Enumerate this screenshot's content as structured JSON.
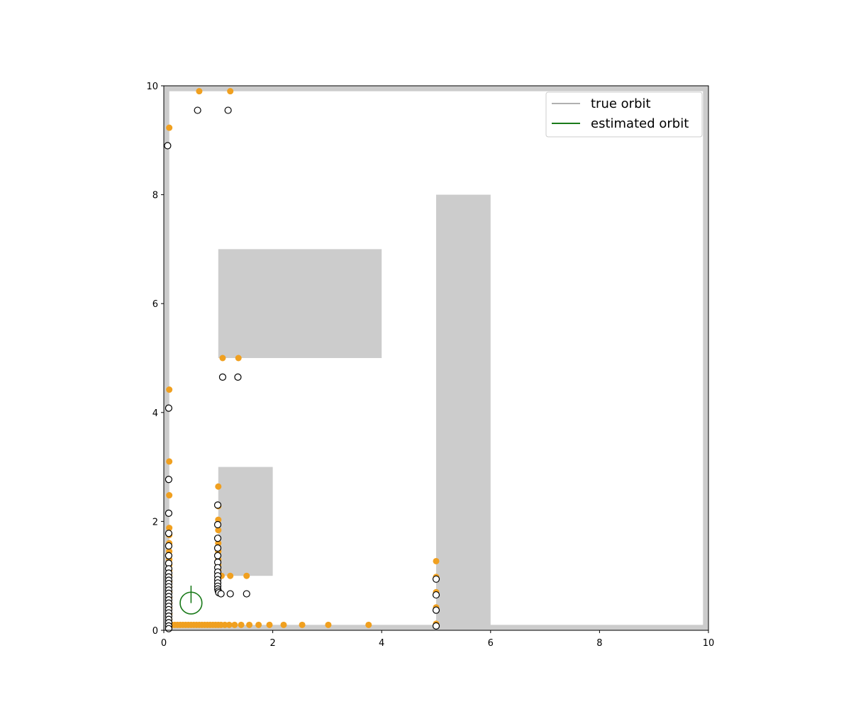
{
  "chart_data": {
    "type": "scatter",
    "title": "",
    "xlabel": "",
    "ylabel": "",
    "xlim": [
      0,
      10
    ],
    "ylim": [
      0,
      10
    ],
    "xticks": [
      "0",
      "2",
      "4",
      "6",
      "8",
      "10"
    ],
    "yticks": [
      "0",
      "2",
      "4",
      "6",
      "8",
      "10"
    ],
    "grid": false,
    "legend": {
      "placement": "top-right",
      "entries": [
        {
          "label": "true orbit",
          "color": "#b0b0b0"
        },
        {
          "label": "estimated orbit",
          "color": "#1a7a1a"
        }
      ]
    },
    "obstacles": [
      {
        "x0": 0,
        "x1": 10,
        "y0": 9.9,
        "y1": 10
      },
      {
        "x0": 0,
        "x1": 0.1,
        "y0": 0,
        "y1": 10
      },
      {
        "x0": 0,
        "x1": 10,
        "y0": 0,
        "y1": 0.1
      },
      {
        "x0": 9.9,
        "x1": 10,
        "y0": 0,
        "y1": 10
      },
      {
        "x0": 1,
        "x1": 4,
        "y0": 5,
        "y1": 7
      },
      {
        "x0": 1,
        "x1": 2,
        "y0": 1,
        "y1": 3
      },
      {
        "x0": 5,
        "x1": 6,
        "y0": 0,
        "y1": 8
      }
    ],
    "obstacle_color": "#cccccc",
    "robot": {
      "x": 0.5,
      "y": 0.5,
      "radius": 0.2,
      "heading_deg": 90,
      "color": "#1a7a1a"
    },
    "series": [
      {
        "marker": "filled",
        "color": "#f0a020",
        "points": [
          [
            0.65,
            9.9
          ],
          [
            1.22,
            9.9
          ],
          [
            0.1,
            9.23
          ],
          [
            0.1,
            4.42
          ],
          [
            0.1,
            3.1
          ],
          [
            0.1,
            2.48
          ],
          [
            0.1,
            1.88
          ],
          [
            0.1,
            1.75
          ],
          [
            0.1,
            1.6
          ],
          [
            0.1,
            1.45
          ],
          [
            0.1,
            1.3
          ],
          [
            0.1,
            1.2
          ],
          [
            0.1,
            1.1
          ],
          [
            0.1,
            1.0
          ],
          [
            0.1,
            0.9
          ],
          [
            0.1,
            0.8
          ],
          [
            0.1,
            0.7
          ],
          [
            0.1,
            0.6
          ],
          [
            0.1,
            0.5
          ],
          [
            0.1,
            0.4
          ],
          [
            0.1,
            0.3
          ],
          [
            0.1,
            0.2
          ],
          [
            0.1,
            0.12
          ],
          [
            0.1,
            0.1
          ],
          [
            0.15,
            0.1
          ],
          [
            0.2,
            0.1
          ],
          [
            0.25,
            0.1
          ],
          [
            0.3,
            0.1
          ],
          [
            0.35,
            0.1
          ],
          [
            0.4,
            0.1
          ],
          [
            0.45,
            0.1
          ],
          [
            0.5,
            0.1
          ],
          [
            0.55,
            0.1
          ],
          [
            0.6,
            0.1
          ],
          [
            0.65,
            0.1
          ],
          [
            0.7,
            0.1
          ],
          [
            0.75,
            0.1
          ],
          [
            0.8,
            0.1
          ],
          [
            0.85,
            0.1
          ],
          [
            0.9,
            0.1
          ],
          [
            0.95,
            0.1
          ],
          [
            1.0,
            0.1
          ],
          [
            1.05,
            0.1
          ],
          [
            1.12,
            0.1
          ],
          [
            1.2,
            0.1
          ],
          [
            1.3,
            0.1
          ],
          [
            1.42,
            0.1
          ],
          [
            1.57,
            0.1
          ],
          [
            1.74,
            0.1
          ],
          [
            1.94,
            0.1
          ],
          [
            2.2,
            0.1
          ],
          [
            2.54,
            0.1
          ],
          [
            3.02,
            0.1
          ],
          [
            3.76,
            0.1
          ],
          [
            1.0,
            2.64
          ],
          [
            1.0,
            2.28
          ],
          [
            1.0,
            2.03
          ],
          [
            1.0,
            1.84
          ],
          [
            1.0,
            1.6
          ],
          [
            1.0,
            1.45
          ],
          [
            1.0,
            1.3
          ],
          [
            1.0,
            1.2
          ],
          [
            1.0,
            1.1
          ],
          [
            1.06,
            1.0
          ],
          [
            1.22,
            1.0
          ],
          [
            1.52,
            1.0
          ],
          [
            1.08,
            5.0
          ],
          [
            1.37,
            5.0
          ],
          [
            5.0,
            1.27
          ],
          [
            5.0,
            0.98
          ],
          [
            5.0,
            0.7
          ],
          [
            5.0,
            0.42
          ],
          [
            5.0,
            0.12
          ]
        ]
      },
      {
        "marker": "hollow",
        "color": "#000000",
        "points": [
          [
            0.62,
            9.55
          ],
          [
            1.18,
            9.55
          ],
          [
            0.07,
            8.9
          ],
          [
            0.09,
            4.08
          ],
          [
            0.09,
            2.77
          ],
          [
            0.09,
            2.15
          ],
          [
            0.09,
            1.78
          ],
          [
            0.09,
            1.55
          ],
          [
            0.09,
            1.37
          ],
          [
            0.09,
            1.23
          ],
          [
            0.09,
            1.13
          ],
          [
            0.09,
            1.05
          ],
          [
            0.09,
            0.98
          ],
          [
            0.09,
            0.92
          ],
          [
            0.09,
            0.86
          ],
          [
            0.09,
            0.8
          ],
          [
            0.09,
            0.74
          ],
          [
            0.09,
            0.68
          ],
          [
            0.09,
            0.62
          ],
          [
            0.09,
            0.56
          ],
          [
            0.09,
            0.5
          ],
          [
            0.09,
            0.44
          ],
          [
            0.09,
            0.38
          ],
          [
            0.09,
            0.32
          ],
          [
            0.09,
            0.26
          ],
          [
            0.09,
            0.2
          ],
          [
            0.09,
            0.14
          ],
          [
            0.09,
            0.08
          ],
          [
            0.09,
            0.03
          ],
          [
            0.99,
            2.3
          ],
          [
            0.99,
            1.94
          ],
          [
            0.99,
            1.69
          ],
          [
            0.99,
            1.51
          ],
          [
            0.99,
            1.37
          ],
          [
            0.99,
            1.25
          ],
          [
            0.99,
            1.15
          ],
          [
            0.99,
            1.07
          ],
          [
            0.99,
            1.0
          ],
          [
            0.99,
            0.93
          ],
          [
            0.99,
            0.87
          ],
          [
            0.99,
            0.81
          ],
          [
            0.99,
            0.76
          ],
          [
            1.0,
            0.72
          ],
          [
            1.01,
            0.69
          ],
          [
            1.05,
            0.67
          ],
          [
            1.22,
            0.67
          ],
          [
            1.52,
            0.67
          ],
          [
            1.08,
            4.65
          ],
          [
            1.36,
            4.65
          ],
          [
            5.0,
            0.94
          ],
          [
            5.0,
            0.65
          ],
          [
            5.0,
            0.37
          ],
          [
            5.0,
            0.08
          ]
        ]
      }
    ]
  }
}
